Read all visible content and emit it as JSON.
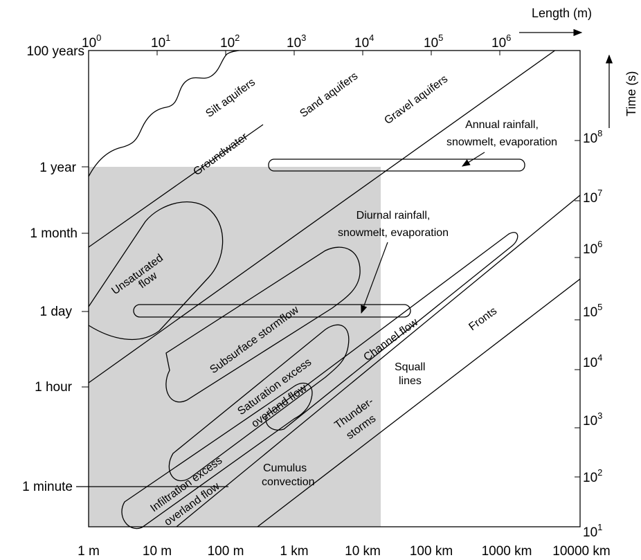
{
  "top_axis": {
    "title": "Length (m)",
    "ticks": [
      {
        "base": "10",
        "exp": "0"
      },
      {
        "base": "10",
        "exp": "1"
      },
      {
        "base": "10",
        "exp": "2"
      },
      {
        "base": "10",
        "exp": "3"
      },
      {
        "base": "10",
        "exp": "4"
      },
      {
        "base": "10",
        "exp": "5"
      },
      {
        "base": "10",
        "exp": "6"
      }
    ]
  },
  "bottom_axis": {
    "ticks": [
      "1 m",
      "10 m",
      "100 m",
      "1 km",
      "10 km",
      "100 km",
      "1000 km",
      "10000 km"
    ]
  },
  "left_axis": {
    "ticks": [
      "100 years",
      "1 year",
      "1 month",
      "1 day",
      "1 hour",
      "1 minute"
    ]
  },
  "right_axis": {
    "title": "Time (s)",
    "ticks": [
      {
        "base": "10",
        "exp": "1"
      },
      {
        "base": "10",
        "exp": "2"
      },
      {
        "base": "10",
        "exp": "3"
      },
      {
        "base": "10",
        "exp": "4"
      },
      {
        "base": "10",
        "exp": "5"
      },
      {
        "base": "10",
        "exp": "6"
      },
      {
        "base": "10",
        "exp": "7"
      },
      {
        "base": "10",
        "exp": "8"
      }
    ]
  },
  "regions": {
    "silt": "Silt aquifers",
    "sand": "Sand aquifers",
    "gravel": "Gravel aquifers",
    "groundwater": "Groundwater",
    "unsat_1": "Unsaturated",
    "unsat_2": "flow",
    "subsurface": "Subsurface stormflow",
    "saturation_1": "Saturation excess",
    "saturation_2": "overland flow",
    "infiltration_1": "Infiltration excess",
    "infiltration_2": "overland flow",
    "channel": "Channel flow",
    "fronts": "Fronts",
    "squall_1": "Squall",
    "squall_2": "lines",
    "thunder_1": "Thunder-",
    "thunder_2": "storms",
    "cumulus_1": "Cumulus",
    "cumulus_2": "convection"
  },
  "annotations": {
    "annual_1": "Annual rainfall,",
    "annual_2": "snowmelt, evaporation",
    "diurnal_1": "Diurnal rainfall,",
    "diurnal_2": "snowmelt, evaporation"
  },
  "colors": {
    "shade": "#d3d3d3",
    "ink": "#000000"
  }
}
